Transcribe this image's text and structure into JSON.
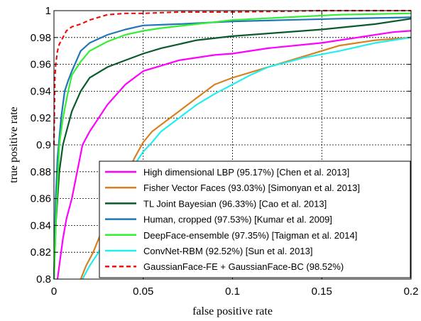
{
  "chart_data": {
    "type": "line",
    "title": "",
    "xlabel": "false positive rate",
    "ylabel": "true positive rate",
    "xlim": [
      0,
      0.2
    ],
    "ylim": [
      0.8,
      1
    ],
    "xticks": [
      0,
      0.05,
      0.1,
      0.15,
      0.2
    ],
    "xtick_labels": [
      "0",
      "0.05",
      "0.1",
      "0.15",
      "0.2"
    ],
    "yticks": [
      0.8,
      0.82,
      0.84,
      0.86,
      0.88,
      0.9,
      0.92,
      0.94,
      0.96,
      0.98,
      1
    ],
    "ytick_labels": [
      "0.8",
      "0.82",
      "0.84",
      "0.86",
      "0.88",
      "0.9",
      "0.92",
      "0.94",
      "0.96",
      "0.98",
      "1"
    ],
    "grid": true,
    "legend_position": "bottom-right",
    "series": [
      {
        "name": "High dimensional LBP (95.17%) [Chen et al. 2013]",
        "color": "#ff00ff",
        "dash": "solid",
        "x": [
          0.002,
          0.003,
          0.005,
          0.007,
          0.01,
          0.013,
          0.016,
          0.02,
          0.025,
          0.03,
          0.04,
          0.05,
          0.07,
          0.09,
          0.1,
          0.12,
          0.15,
          0.17,
          0.19,
          0.2
        ],
        "y": [
          0.8,
          0.81,
          0.83,
          0.845,
          0.86,
          0.88,
          0.9,
          0.91,
          0.92,
          0.93,
          0.945,
          0.955,
          0.963,
          0.967,
          0.968,
          0.972,
          0.976,
          0.98,
          0.984,
          0.985
        ]
      },
      {
        "name": "Fisher Vector Faces (93.03%) [Simonyan et al. 2013]",
        "color": "#d98020",
        "dash": "solid",
        "x": [
          0.015,
          0.018,
          0.022,
          0.025,
          0.03,
          0.035,
          0.04,
          0.045,
          0.05,
          0.055,
          0.06,
          0.07,
          0.08,
          0.09,
          0.1,
          0.12,
          0.14,
          0.16,
          0.18,
          0.2
        ],
        "y": [
          0.8,
          0.81,
          0.82,
          0.83,
          0.845,
          0.86,
          0.875,
          0.89,
          0.902,
          0.91,
          0.915,
          0.925,
          0.935,
          0.945,
          0.95,
          0.958,
          0.966,
          0.974,
          0.978,
          0.98
        ]
      },
      {
        "name": "TL Joint Bayesian (96.33%) [Cao et al. 2013]",
        "color": "#0b5a2a",
        "dash": "solid",
        "x": [
          0,
          0.001,
          0.002,
          0.003,
          0.005,
          0.007,
          0.01,
          0.015,
          0.02,
          0.03,
          0.04,
          0.05,
          0.06,
          0.08,
          0.1,
          0.12,
          0.15,
          0.18,
          0.2
        ],
        "y": [
          0.8,
          0.84,
          0.86,
          0.88,
          0.9,
          0.91,
          0.925,
          0.94,
          0.95,
          0.958,
          0.963,
          0.968,
          0.972,
          0.978,
          0.981,
          0.983,
          0.986,
          0.99,
          0.994
        ]
      },
      {
        "name": "Human, cropped (97.53%) [Kumar et al. 2009]",
        "color": "#1f77b4",
        "dash": "solid",
        "x": [
          0,
          0.001,
          0.002,
          0.004,
          0.006,
          0.008,
          0.01,
          0.015,
          0.02,
          0.03,
          0.04,
          0.05,
          0.07,
          0.1,
          0.13,
          0.16,
          0.2
        ],
        "y": [
          0.8,
          0.86,
          0.89,
          0.92,
          0.94,
          0.948,
          0.955,
          0.97,
          0.976,
          0.982,
          0.986,
          0.989,
          0.99,
          0.992,
          0.993,
          0.994,
          0.995
        ]
      },
      {
        "name": "DeepFace-ensemble (97.35%) [Taigman et al. 2014]",
        "color": "#33ee33",
        "dash": "solid",
        "x": [
          0,
          0.001,
          0.002,
          0.003,
          0.005,
          0.008,
          0.01,
          0.015,
          0.02,
          0.03,
          0.04,
          0.05,
          0.06,
          0.08,
          0.1,
          0.13,
          0.16,
          0.2
        ],
        "y": [
          0.8,
          0.84,
          0.87,
          0.9,
          0.92,
          0.94,
          0.952,
          0.962,
          0.97,
          0.977,
          0.982,
          0.985,
          0.987,
          0.99,
          0.993,
          0.995,
          0.997,
          0.998
        ]
      },
      {
        "name": "ConvNet-RBM (92.52%) [Sun et al. 2013]",
        "color": "#22eeee",
        "dash": "solid",
        "x": [
          0.016,
          0.02,
          0.025,
          0.03,
          0.035,
          0.04,
          0.045,
          0.05,
          0.055,
          0.06,
          0.07,
          0.08,
          0.09,
          0.1,
          0.11,
          0.12,
          0.14,
          0.16,
          0.18,
          0.2
        ],
        "y": [
          0.8,
          0.81,
          0.82,
          0.835,
          0.85,
          0.87,
          0.885,
          0.895,
          0.902,
          0.91,
          0.92,
          0.93,
          0.938,
          0.945,
          0.952,
          0.958,
          0.965,
          0.97,
          0.976,
          0.98
        ]
      },
      {
        "name": "GaussianFace-FE + GaussianFace-BC (98.52%)",
        "color": "#ee1111",
        "dash": "dashed",
        "x": [
          0,
          0.0005,
          0.001,
          0.002,
          0.003,
          0.005,
          0.007,
          0.01,
          0.015,
          0.02,
          0.025,
          0.03,
          0.04,
          0.05,
          0.07,
          0.1,
          0.15,
          0.2
        ],
        "y": [
          0.9,
          0.95,
          0.96,
          0.97,
          0.975,
          0.98,
          0.985,
          0.988,
          0.99,
          0.993,
          0.995,
          0.997,
          0.998,
          0.998,
          0.999,
          0.999,
          1,
          1
        ]
      }
    ]
  }
}
